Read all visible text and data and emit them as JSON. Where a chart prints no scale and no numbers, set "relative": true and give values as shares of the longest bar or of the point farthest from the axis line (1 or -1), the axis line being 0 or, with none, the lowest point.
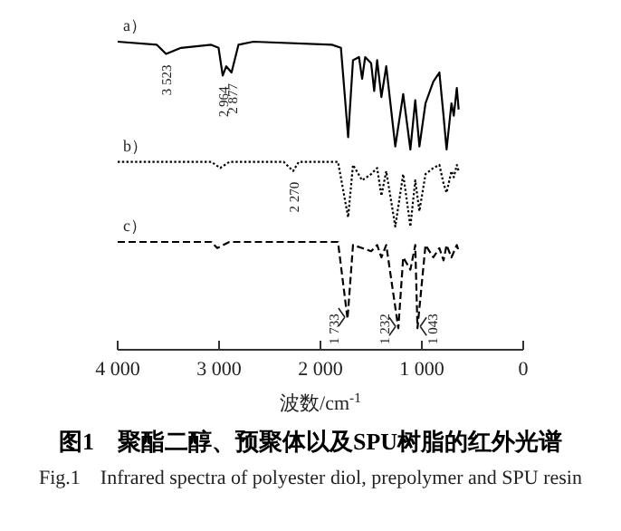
{
  "chart_data": {
    "type": "line",
    "relative": true,
    "title": "图1　聚酯二醇、预聚体以及SPU树脂的红外光谱",
    "subtitle": "Fig.1　Infrared spectra of polyester diol, prepolymer and SPU resin",
    "xlabel": "波数/cm$^{-1}$",
    "xlim": [
      4000,
      0
    ],
    "xticks": [
      {
        "value": 4000,
        "label": "4 000"
      },
      {
        "value": 3000,
        "label": "3 000"
      },
      {
        "value": 2000,
        "label": "2 000"
      },
      {
        "value": 1000,
        "label": "1 000"
      },
      0
    ],
    "series": [
      {
        "name": "a）",
        "color": "#000000",
        "line_style": "solid",
        "x": [
          4000,
          3613,
          3523,
          3375,
          3077,
          3005,
          2964,
          2929,
          2877,
          2809,
          2661,
          1887,
          1798,
          1727,
          1679,
          1620,
          1589,
          1559,
          1500,
          1470,
          1441,
          1399,
          1351,
          1262,
          1184,
          1113,
          1065,
          1024,
          964,
          887,
          827,
          786,
          756,
          708,
          685,
          655,
          637
        ],
        "values": [
          1.0,
          0.99,
          0.96,
          0.98,
          0.99,
          0.98,
          0.89,
          0.92,
          0.9,
          0.99,
          1.0,
          0.99,
          0.98,
          0.69,
          0.94,
          0.95,
          0.88,
          0.95,
          0.93,
          0.84,
          0.94,
          0.82,
          0.92,
          0.66,
          0.83,
          0.65,
          0.81,
          0.66,
          0.8,
          0.87,
          0.9,
          0.76,
          0.65,
          0.8,
          0.76,
          0.85,
          0.78
        ]
      },
      {
        "name": "b）",
        "color": "#000000",
        "line_style": "dotted",
        "x": [
          4000,
          3077,
          2988,
          2898,
          2363,
          2270,
          2214,
          1827,
          1727,
          1679,
          1589,
          1500,
          1441,
          1399,
          1351,
          1262,
          1184,
          1113,
          1065,
          1024,
          964,
          887,
          827,
          786,
          756,
          708,
          685,
          655,
          637
        ],
        "values": [
          0.61,
          0.61,
          0.59,
          0.61,
          0.61,
          0.58,
          0.61,
          0.61,
          0.43,
          0.6,
          0.55,
          0.57,
          0.59,
          0.5,
          0.58,
          0.4,
          0.57,
          0.4,
          0.55,
          0.45,
          0.57,
          0.59,
          0.6,
          0.54,
          0.51,
          0.58,
          0.56,
          0.6,
          0.58
        ]
      },
      {
        "name": "c）",
        "color": "#000000",
        "line_style": "dashed",
        "x": [
          4000,
          3077,
          3018,
          2898,
          1827,
          1733,
          1679,
          1589,
          1500,
          1441,
          1399,
          1351,
          1232,
          1184,
          1113,
          1065,
          1043,
          964,
          887,
          827,
          786,
          756,
          708,
          655,
          637
        ],
        "values": [
          0.35,
          0.35,
          0.33,
          0.35,
          0.35,
          0.1,
          0.34,
          0.33,
          0.32,
          0.34,
          0.3,
          0.34,
          0.07,
          0.3,
          0.26,
          0.34,
          0.07,
          0.34,
          0.3,
          0.33,
          0.29,
          0.34,
          0.3,
          0.34,
          0.32
        ]
      }
    ],
    "annotations": [
      {
        "text": "3 523",
        "x": 3523,
        "y": 0.96
      },
      {
        "text": "2 964",
        "x": 2964,
        "y": 0.89
      },
      {
        "text": "2 877",
        "x": 2877,
        "y": 0.9
      },
      {
        "text": "2 270",
        "x": 2270,
        "y": 0.58
      },
      {
        "text": "1 733",
        "x": 1733,
        "y": 0.1
      },
      {
        "text": "1 232",
        "x": 1232,
        "y": 0.07
      },
      {
        "text": "1 043",
        "x": 1043,
        "y": 0.07
      }
    ]
  }
}
